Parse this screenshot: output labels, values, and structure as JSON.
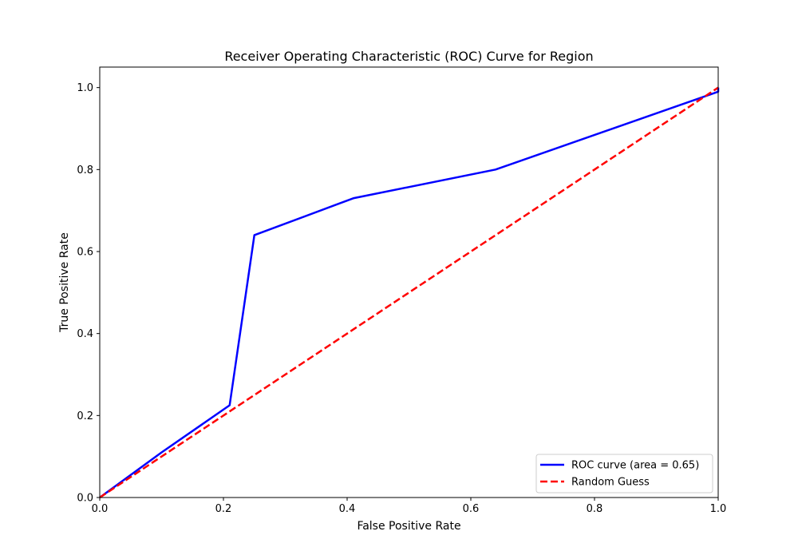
{
  "chart_data": {
    "type": "line",
    "title": "Receiver Operating Characteristic (ROC) Curve for Region",
    "xlabel": "False Positive Rate",
    "ylabel": "True Positive Rate",
    "xlim": [
      0.0,
      1.0
    ],
    "ylim": [
      0.0,
      1.05
    ],
    "xticks": [
      "0.0",
      "0.2",
      "0.4",
      "0.6",
      "0.8",
      "1.0"
    ],
    "yticks": [
      "0.0",
      "0.2",
      "0.4",
      "0.6",
      "0.8",
      "1.0"
    ],
    "grid": false,
    "legend_position": "lower-right",
    "series": [
      {
        "name": "ROC curve (area = 0.65)",
        "color": "#0000ff",
        "style": "solid",
        "x": [
          0.0,
          0.1,
          0.21,
          0.25,
          0.41,
          0.64,
          1.0,
          1.0
        ],
        "y": [
          0.0,
          0.11,
          0.225,
          0.64,
          0.73,
          0.8,
          0.99,
          1.0
        ]
      },
      {
        "name": "Random Guess",
        "color": "#ff0000",
        "style": "dashed",
        "x": [
          0.0,
          1.0
        ],
        "y": [
          0.0,
          1.0
        ]
      }
    ]
  }
}
